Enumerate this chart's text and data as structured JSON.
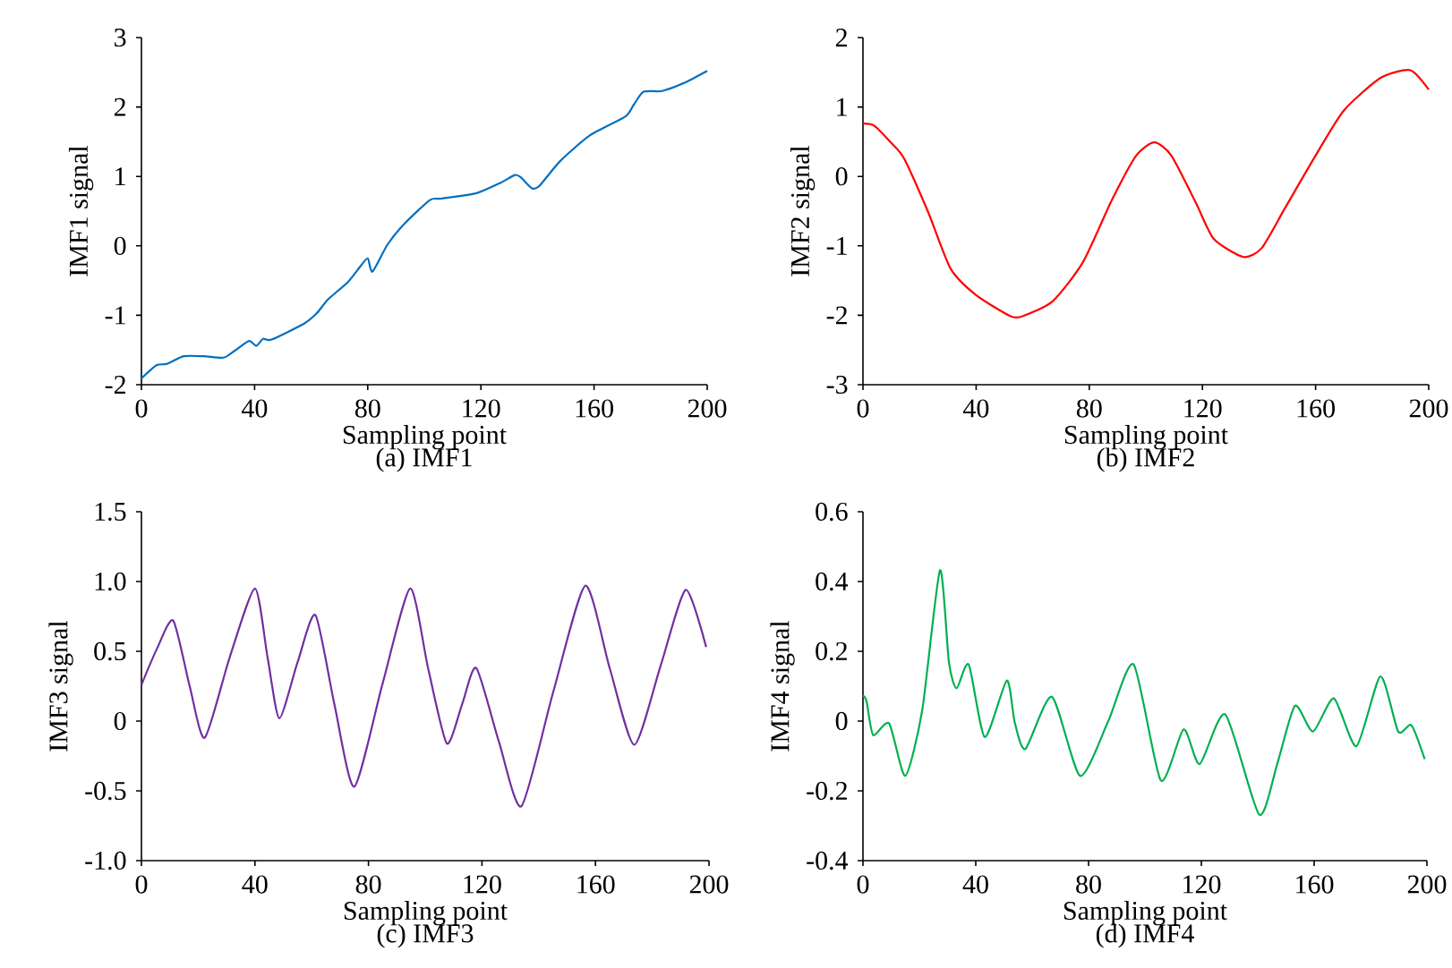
{
  "chart_data": [
    {
      "type": "line",
      "title": "(a) IMF1",
      "xlabel": "Sampling point",
      "ylabel": "IMF1 signal",
      "color": "#0070c0",
      "x": [
        0,
        5.3,
        9,
        15,
        22,
        29,
        33,
        38,
        40.6,
        43,
        46,
        57.5,
        62,
        66,
        73,
        77.5,
        80,
        81.7,
        87,
        93,
        102,
        106,
        118.5,
        127,
        132,
        134,
        138,
        140.6,
        148,
        158.5,
        171,
        174,
        177.5,
        184,
        192,
        200
      ],
      "values": [
        -1.91,
        -1.72,
        -1.7,
        -1.59,
        -1.59,
        -1.61,
        -1.51,
        -1.37,
        -1.44,
        -1.34,
        -1.35,
        -1.12,
        -0.97,
        -0.77,
        -0.52,
        -0.29,
        -0.18,
        -0.37,
        0.02,
        0.32,
        0.66,
        0.68,
        0.76,
        0.91,
        1.02,
        0.99,
        0.83,
        0.86,
        1.22,
        1.59,
        1.86,
        2.03,
        2.22,
        2.23,
        2.35,
        2.52
      ],
      "xlim": [
        0,
        200
      ],
      "ylim": [
        -2,
        3
      ],
      "xticks": [
        0,
        40,
        80,
        120,
        160,
        200
      ],
      "yticks": [
        -2,
        -1,
        0,
        1,
        2,
        3
      ],
      "grid": false,
      "marker": "none",
      "line_style": "solid"
    },
    {
      "type": "line",
      "title": "(b) IMF2",
      "xlabel": "Sampling point",
      "ylabel": "IMF2 signal",
      "color": "#ff0000",
      "x": [
        0,
        4,
        10.3,
        14.5,
        23,
        31,
        40,
        52,
        56.6,
        67,
        77.7,
        88,
        96.6,
        103,
        109,
        117.7,
        124,
        134.5,
        141,
        149,
        160,
        170,
        183,
        193.5,
        200
      ],
      "values": [
        0.76,
        0.73,
        0.47,
        0.26,
        -0.51,
        -1.33,
        -1.71,
        -2.01,
        -2.01,
        -1.8,
        -1.24,
        -0.34,
        0.3,
        0.49,
        0.3,
        -0.38,
        -0.9,
        -1.16,
        -1.03,
        -0.47,
        0.3,
        0.95,
        1.42,
        1.53,
        1.25
      ],
      "xlim": [
        0,
        200
      ],
      "ylim": [
        -3,
        2
      ],
      "xticks": [
        0,
        40,
        80,
        120,
        160,
        200
      ],
      "yticks": [
        -3,
        -2,
        -1,
        0,
        1,
        2
      ],
      "grid": false,
      "marker": "none",
      "line_style": "solid"
    },
    {
      "type": "line",
      "title": "(c) IMF3",
      "xlabel": "Sampling point",
      "ylabel": "IMF3 signal",
      "color": "#7030a0",
      "x": [
        0,
        5.5,
        11.2,
        17,
        22.3,
        31,
        40,
        44.5,
        48.6,
        55,
        61.3,
        68,
        75,
        85,
        94.7,
        101,
        107.6,
        113,
        118,
        126,
        133.9,
        145,
        156.4,
        165,
        173.7,
        183,
        191.8,
        199
      ],
      "values": [
        0.26,
        0.52,
        0.72,
        0.25,
        -0.12,
        0.45,
        0.95,
        0.45,
        0.02,
        0.42,
        0.76,
        0.12,
        -0.47,
        0.27,
        0.95,
        0.38,
        -0.16,
        0.12,
        0.38,
        -0.15,
        -0.61,
        0.2,
        0.97,
        0.38,
        -0.17,
        0.4,
        0.94,
        0.53
      ],
      "xlim": [
        0,
        200
      ],
      "ylim": [
        -1,
        1.5
      ],
      "xticks": [
        0,
        40,
        80,
        120,
        160,
        200
      ],
      "yticks": [
        {
          "value": -1,
          "label": "-1.0"
        },
        {
          "value": -0.5,
          "label": "-0.5"
        },
        0,
        {
          "value": 0.5,
          "label": "0.5"
        },
        {
          "value": 1,
          "label": "1.0"
        },
        {
          "value": 1.5,
          "label": "1.5"
        }
      ],
      "grid": false,
      "marker": "none",
      "line_style": "solid"
    },
    {
      "type": "line",
      "title": "(d) IMF4",
      "xlabel": "Sampling point",
      "ylabel": "IMF4 signal",
      "color": "#00b050",
      "x": [
        0,
        1.3,
        3.6,
        9.3,
        15,
        21,
        27.3,
        30.5,
        33.2,
        37.5,
        43.2,
        51,
        53.8,
        57.6,
        67,
        77,
        87,
        96,
        105.6,
        113.7,
        119.4,
        128.5,
        140.5,
        147,
        153.2,
        159.6,
        167,
        175,
        183.5,
        189.8,
        194.5,
        199.2
      ],
      "values": [
        0.073,
        0.056,
        -0.04,
        -0.007,
        -0.157,
        0.03,
        0.432,
        0.167,
        0.094,
        0.162,
        -0.046,
        0.116,
        -0.003,
        -0.08,
        0.07,
        -0.157,
        0.0,
        0.162,
        -0.17,
        -0.024,
        -0.123,
        0.019,
        -0.268,
        -0.12,
        0.044,
        -0.03,
        0.065,
        -0.072,
        0.128,
        -0.03,
        -0.012,
        -0.109
      ],
      "xlim": [
        0,
        200
      ],
      "ylim": [
        -0.4,
        0.6
      ],
      "xticks": [
        0,
        40,
        80,
        120,
        160,
        200
      ],
      "yticks": [
        -0.4,
        -0.2,
        0,
        0.2,
        0.4,
        0.6
      ],
      "grid": false,
      "marker": "none",
      "line_style": "solid"
    }
  ]
}
